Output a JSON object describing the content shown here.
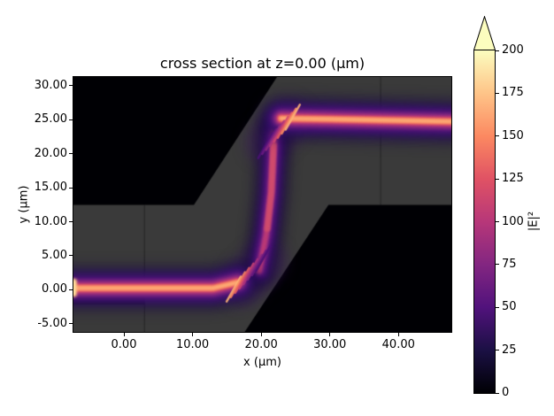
{
  "chart_data": {
    "type": "heatmap",
    "title": "cross section at z=0.00 (µm)",
    "xlabel": "x (µm)",
    "ylabel": "y (µm)",
    "xlim": [
      -7.35,
      47.7
    ],
    "ylim": [
      -6.2,
      31.3
    ],
    "xticks": {
      "values": [
        0,
        10,
        20,
        30,
        40
      ],
      "labels": [
        "0.00",
        "10.00",
        "20.00",
        "30.00",
        "40.00"
      ]
    },
    "yticks": {
      "values": [
        30,
        25,
        20,
        15,
        10,
        5,
        0,
        -5
      ],
      "labels": [
        "30.00",
        "25.00",
        "20.00",
        "15.00",
        "10.00",
        "5.00",
        "0.00",
        "-5.00"
      ]
    },
    "colorbar": {
      "label": "|E|²",
      "vmin": 0,
      "vmax": 200,
      "ticks": [
        0,
        25,
        50,
        75,
        100,
        125,
        150,
        175,
        200
      ],
      "extend": "max",
      "colormap": "magma",
      "stops": [
        [
          0,
          "#000004"
        ],
        [
          0.125,
          "#1b1044"
        ],
        [
          0.25,
          "#51127c"
        ],
        [
          0.375,
          "#832681"
        ],
        [
          0.5,
          "#b73779"
        ],
        [
          0.625,
          "#e05264"
        ],
        [
          0.75,
          "#fc8961"
        ],
        [
          0.875,
          "#fec488"
        ],
        [
          1,
          "#fcfdbf"
        ]
      ],
      "over_color": "#fcfdbf"
    },
    "background_color": "#000004",
    "structure": {
      "description": "S-bend slab waveguide: gray dielectric region on black background; lower slab (y<12.5) joins upper slab (y>12.5) through a diagonal band near x=10..30",
      "color": "#3a3a3a",
      "polygon": [
        [
          -7.35,
          -6.2
        ],
        [
          -7.35,
          12.5
        ],
        [
          10.2,
          12.5
        ],
        [
          22.3,
          31.3
        ],
        [
          47.7,
          31.3
        ],
        [
          47.7,
          12.5
        ],
        [
          29.8,
          12.5
        ],
        [
          17.6,
          -6.2
        ]
      ],
      "seams": [
        {
          "x": 3.0,
          "y0": -6.2,
          "y1": 12.5
        },
        {
          "x": 37.4,
          "y0": 12.5,
          "y1": 31.3
        }
      ],
      "dark_patch": {
        "x0": -7.35,
        "x1": 3.0,
        "y0": -2.2,
        "y1": -0.9
      }
    },
    "field": {
      "description": "|E|² of guided mode: enters from left at y≈0 (peak ≈170-200), climbs the S-bend near x≈20-22 with interference fringes at both corners, exits right at y≈25",
      "beam_styles": {
        "bright": [
          {
            "w": 6.5,
            "c": "#1c0a45",
            "a": 0.55,
            "b": 7
          },
          {
            "w": 4.6,
            "c": "#33106b",
            "a": 0.8,
            "b": 5
          },
          {
            "w": 3.3,
            "c": "#51127c",
            "a": 0.9,
            "b": 3.5
          },
          {
            "w": 2.4,
            "c": "#79257f",
            "a": 1,
            "b": 2.5
          },
          {
            "w": 1.8,
            "c": "#a1307f",
            "a": 1,
            "b": 2
          },
          {
            "w": 1.35,
            "c": "#c73e72",
            "a": 1,
            "b": 1.6
          },
          {
            "w": 1.0,
            "c": "#e85f60",
            "a": 1,
            "b": 1.2
          },
          {
            "w": 0.7,
            "c": "#fb8a62",
            "a": 1,
            "b": 1
          },
          {
            "w": 0.45,
            "c": "#fcac75",
            "a": 1,
            "b": 0.8
          }
        ],
        "medium": [
          {
            "w": 5.5,
            "c": "#170838",
            "a": 0.5,
            "b": 6
          },
          {
            "w": 3.6,
            "c": "#2c0f5e",
            "a": 0.75,
            "b": 4.5
          },
          {
            "w": 2.5,
            "c": "#451072",
            "a": 0.9,
            "b": 3
          },
          {
            "w": 1.7,
            "c": "#61187e",
            "a": 1,
            "b": 2.2
          },
          {
            "w": 1.15,
            "c": "#82267f",
            "a": 1,
            "b": 1.6
          },
          {
            "w": 0.8,
            "c": "#a1307f",
            "a": 1,
            "b": 1.2
          },
          {
            "w": 0.55,
            "c": "#bd3a74",
            "a": 0.95,
            "b": 1
          }
        ],
        "vcore": [
          {
            "w": 0.9,
            "c": "#d44f6b",
            "a": 0.85,
            "b": 1.3
          }
        ],
        "haze": [
          {
            "w": 6.0,
            "c": "#3c1166",
            "a": 0.45,
            "b": 8
          }
        ],
        "source": [
          {
            "w": 0.9,
            "c": "#fdc387",
            "a": 1,
            "b": 1.5
          },
          {
            "w": 0.45,
            "c": "#fee3a2",
            "a": 1,
            "b": 0.8
          }
        ]
      },
      "beams": [
        {
          "name": "lower-bend-haze",
          "style": "haze",
          "path": [
            [
              17.3,
              0.8
            ],
            [
              20.6,
              4.2
            ]
          ]
        },
        {
          "name": "upper-bend-haze",
          "style": "haze",
          "path": [
            [
              20.8,
              21.6
            ],
            [
              24.0,
              25.0
            ]
          ]
        },
        {
          "name": "bend-beam",
          "style": "medium",
          "path": [
            [
              19.7,
              2.8
            ],
            [
              20.7,
              8.0
            ],
            [
              21.4,
              14.0
            ],
            [
              21.9,
              23.2
            ]
          ]
        },
        {
          "name": "bend-beam-core",
          "style": "vcore",
          "path": [
            [
              20.9,
              9.0
            ],
            [
              21.5,
              14.5
            ],
            [
              21.8,
              21.2
            ]
          ]
        },
        {
          "name": "input-beam",
          "style": "bright",
          "path": [
            [
              -7.35,
              0.25
            ],
            [
              13.0,
              0.25
            ],
            [
              16.6,
              1.1
            ]
          ]
        },
        {
          "name": "output-beam",
          "style": "bright",
          "path": [
            [
              22.9,
              25.2
            ],
            [
              30.0,
              25.1
            ],
            [
              47.7,
              24.75
            ]
          ]
        },
        {
          "name": "source-bar",
          "style": "source",
          "path": [
            [
              -7.3,
              -0.6
            ],
            [
              -7.3,
              1.2
            ]
          ]
        }
      ],
      "fringes": [
        {
          "name": "lower-bend-fringes",
          "from": [
            16.0,
            0.1
          ],
          "to": [
            20.3,
            4.6
          ],
          "count": 8,
          "dir": [
            0.49,
            0.87
          ],
          "len": 4.2,
          "width": 0.32,
          "alpha": 0.9,
          "colors": [
            "#fdb276",
            "#f98a61",
            "#e65f62",
            "#cc4571",
            "#ab337c",
            "#8a2881",
            "#681a80",
            "#4b1076"
          ]
        },
        {
          "name": "upper-bend-fringes",
          "from": [
            20.6,
            21.2
          ],
          "to": [
            24.6,
            25.4
          ],
          "count": 8,
          "dir": [
            0.49,
            0.87
          ],
          "len": 4.2,
          "width": 0.32,
          "alpha": 0.9,
          "colors": [
            "#4b1076",
            "#681a80",
            "#8a2881",
            "#ab337c",
            "#cc4571",
            "#e65f62",
            "#f98a61",
            "#fdb276"
          ]
        }
      ]
    }
  }
}
